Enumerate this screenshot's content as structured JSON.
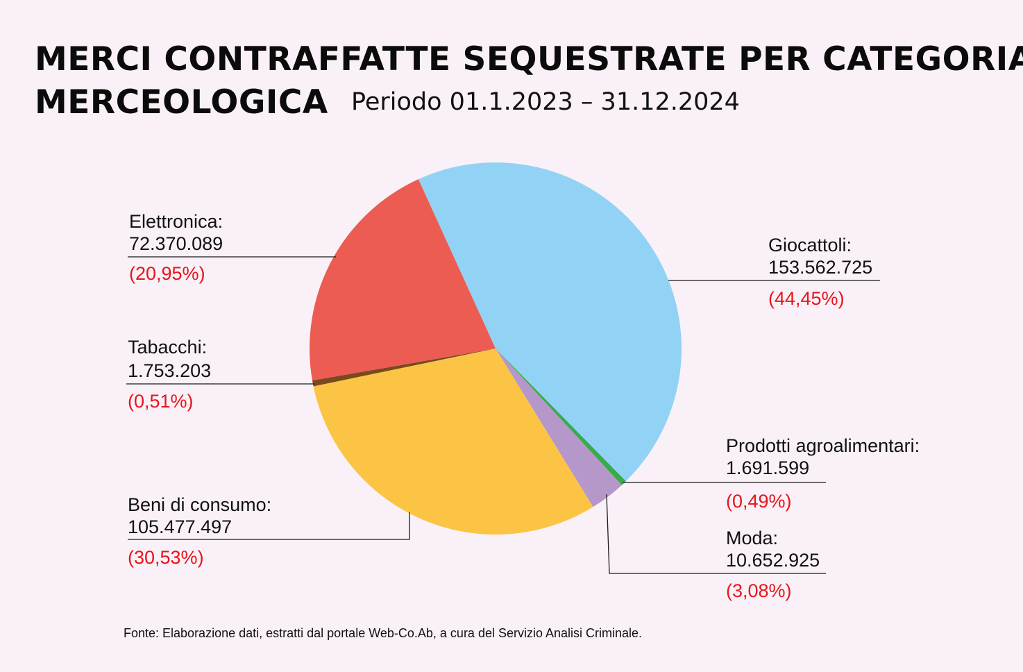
{
  "header": {
    "title_line_1": "MERCI CONTRAFFATTE SEQUESTRATE PER CATEGORIA",
    "title_line_2": "MERCEOLOGICA",
    "subtitle": "Periodo 01.1.2023 – 31.12.2024"
  },
  "chart_data": {
    "type": "pie",
    "title": "MERCI CONTRAFFATTE SEQUESTRATE PER CATEGORIA MERCEOLOGICA",
    "subtitle": "Periodo 01.1.2023 – 31.12.2024",
    "slices": [
      {
        "name": "Giocattoli:",
        "value": 153562725,
        "value_label": "153.562.725",
        "percent": 44.45,
        "percent_label": "(44,45%)",
        "color": "#92d3f5"
      },
      {
        "name": "Prodotti agroalimentari:",
        "value": 1691599,
        "value_label": "1.691.599",
        "percent": 0.49,
        "percent_label": "(0,49%)",
        "color": "#3aaa4a"
      },
      {
        "name": "Moda:",
        "value": 10652925,
        "value_label": "10.652.925",
        "percent": 3.08,
        "percent_label": "(3,08%)",
        "color": "#b597c9"
      },
      {
        "name": "Beni di consumo:",
        "value": 105477497,
        "value_label": "105.477.497",
        "percent": 30.53,
        "percent_label": "(30,53%)",
        "color": "#fcc444"
      },
      {
        "name": "Tabacchi:",
        "value": 1753203,
        "value_label": "1.753.203",
        "percent": 0.51,
        "percent_label": "(0,51%)",
        "color": "#7a4a1e"
      },
      {
        "name": "Elettronica:",
        "value": 72370089,
        "value_label": "72.370.089",
        "percent": 20.95,
        "percent_label": "(20,95%)",
        "color": "#ec5c52"
      }
    ]
  },
  "footer": {
    "source": "Fonte: Elaborazione dati, estratti dal portale Web-Co.Ab, a cura del Servizio Analisi Criminale."
  }
}
